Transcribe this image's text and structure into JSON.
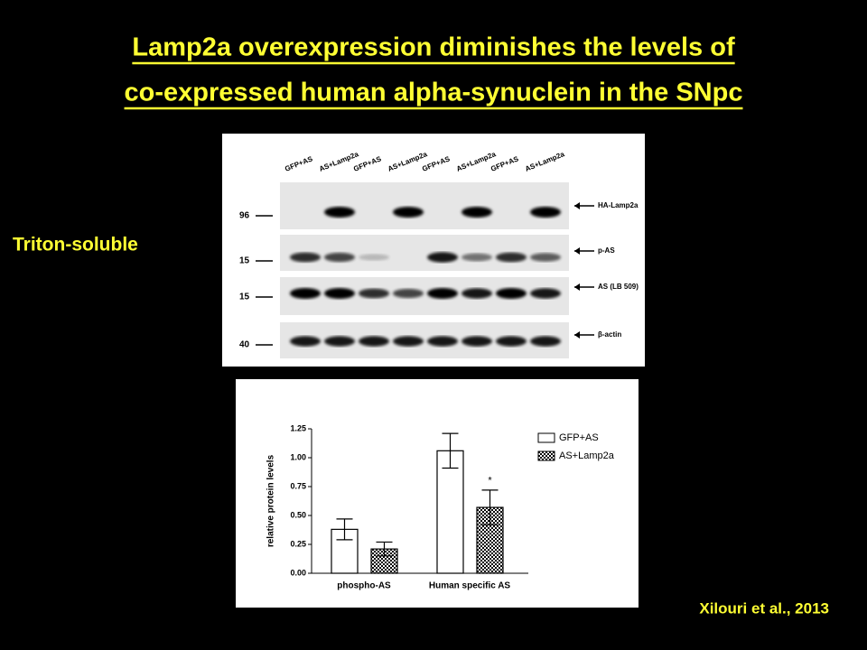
{
  "slide_title": [
    "Lamp2a overexpression diminishes the levels of",
    "co-expressed human alpha-synuclein in the SNpc"
  ],
  "fraction_label": "Triton-soluble",
  "blot": {
    "lanes": [
      "GFP+AS",
      "AS+Lamp2a",
      "GFP+AS",
      "AS+Lamp2a",
      "GFP+AS",
      "AS+Lamp2a",
      "GFP+AS",
      "AS+Lamp2a"
    ],
    "markers": [
      "96",
      "15",
      "15",
      "40"
    ],
    "bands": [
      "HA-Lamp2a",
      "p-AS",
      "AS (LB 509)",
      "β-actin"
    ]
  },
  "chart_data": {
    "type": "bar",
    "y_label": "relative protein levels",
    "categories": [
      "phospho-AS",
      "Human specific AS"
    ],
    "series": [
      {
        "name": "GFP+AS",
        "color": "#ffffff",
        "values": [
          0.38,
          1.06
        ],
        "errors": [
          0.09,
          0.15
        ]
      },
      {
        "name": "AS+Lamp2a",
        "color": "checker",
        "values": [
          0.21,
          0.57
        ],
        "errors": [
          0.06,
          0.15
        ]
      }
    ],
    "annotation": "*",
    "ylim": [
      0,
      1.25
    ],
    "yticks": [
      {
        "value": 0,
        "label": "0.00"
      },
      {
        "value": 0.25,
        "label": "0.25"
      },
      {
        "value": 0.5,
        "label": "0.50"
      },
      {
        "value": 0.75,
        "label": "0.75"
      },
      {
        "value": 1,
        "label": "1.00"
      },
      {
        "value": 1.25,
        "label": "1.25"
      }
    ]
  },
  "citation": "Xilouri et al., 2013"
}
